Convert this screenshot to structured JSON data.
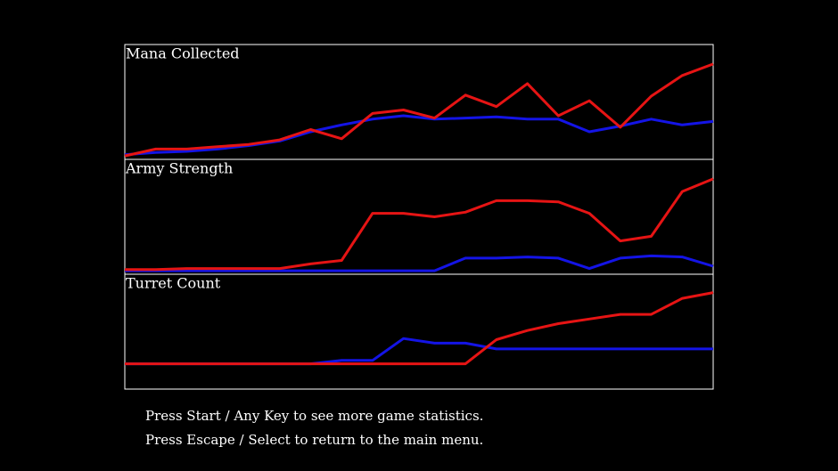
{
  "chart_data": [
    {
      "type": "line",
      "title": "Mana Collected",
      "ylim": [
        0,
        100
      ],
      "series": [
        {
          "color": "#1414e6",
          "values": [
            4,
            6,
            7,
            9,
            12,
            16,
            24,
            30,
            35,
            38,
            35,
            36,
            37,
            35,
            35,
            24,
            29,
            35,
            30,
            33
          ]
        },
        {
          "color": "#e61414",
          "values": [
            3,
            9,
            9,
            11,
            13,
            17,
            26,
            18,
            40,
            43,
            36,
            56,
            46,
            66,
            38,
            51,
            28,
            55,
            73,
            83
          ]
        }
      ]
    },
    {
      "type": "line",
      "title": "Army Strength",
      "ylim": [
        0,
        100
      ],
      "series": [
        {
          "color": "#1414e6",
          "values": [
            3,
            3,
            3,
            3,
            3,
            3,
            3,
            3,
            3,
            3,
            3,
            14,
            14,
            15,
            14,
            5,
            14,
            16,
            15,
            7
          ]
        },
        {
          "color": "#e61414",
          "values": [
            4,
            4,
            5,
            5,
            5,
            5,
            9,
            12,
            53,
            53,
            50,
            54,
            64,
            64,
            63,
            53,
            29,
            33,
            72,
            83
          ]
        }
      ]
    },
    {
      "type": "line",
      "title": "Turret Count",
      "ylim": [
        0,
        100
      ],
      "series": [
        {
          "color": "#1414e6",
          "values": [
            22,
            22,
            22,
            22,
            22,
            22,
            22,
            25,
            25,
            44,
            40,
            40,
            35,
            35,
            35,
            35,
            35,
            35,
            35,
            35
          ]
        },
        {
          "color": "#e61414",
          "values": [
            22,
            22,
            22,
            22,
            22,
            22,
            22,
            22,
            22,
            22,
            22,
            22,
            43,
            51,
            57,
            61,
            65,
            65,
            79,
            84
          ]
        }
      ]
    }
  ],
  "instructions": [
    "Press Start / Any Key to see more game statistics.",
    "Press Escape / Select to return to the main menu."
  ]
}
